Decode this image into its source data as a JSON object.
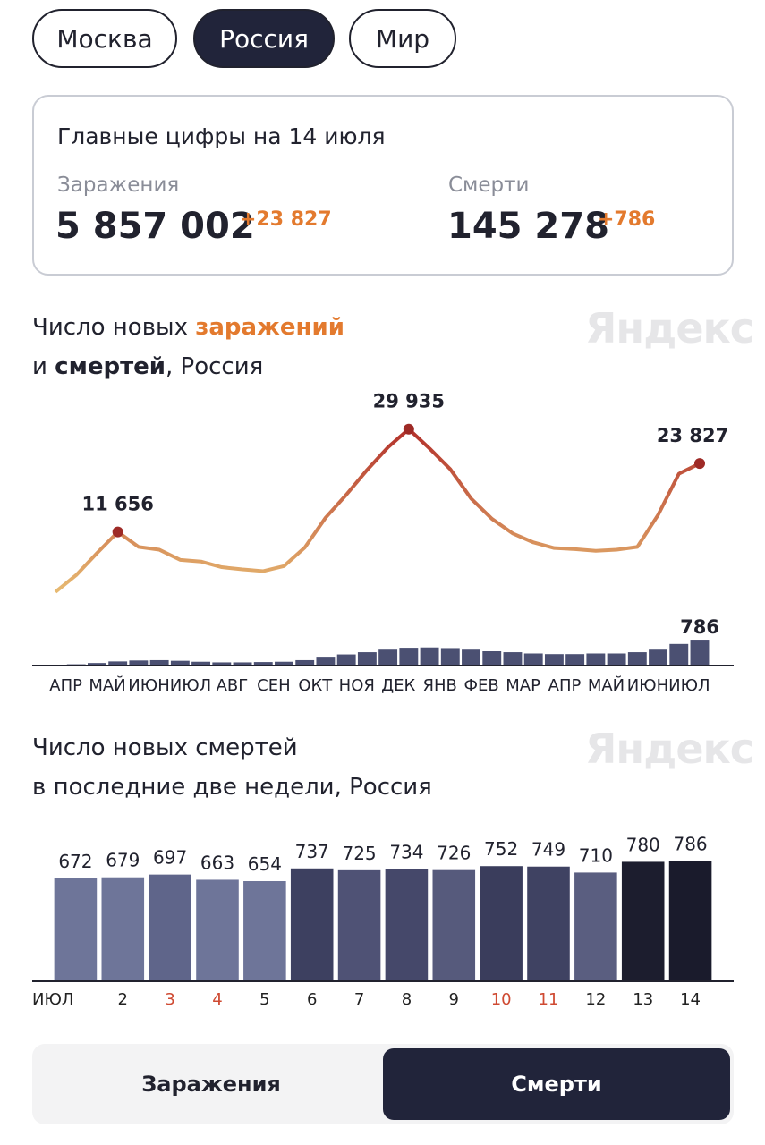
{
  "tabs": [
    "Москва",
    "Россия",
    "Мир"
  ],
  "summary": {
    "title": "Главные цифры на 14 июля",
    "items": [
      {
        "label": "Заражения",
        "value": "5 857 002",
        "delta": "+23 827"
      },
      {
        "label": "Смерти",
        "value": "145 278",
        "delta": "+786"
      }
    ]
  },
  "watermark": "Яндекс",
  "chart_data": [
    {
      "type": "line",
      "title": [
        "Число новых ",
        "заражений",
        "и ",
        "смертей",
        ", Россия"
      ],
      "categories": [
        "АПР",
        null,
        "МАЙ",
        null,
        "ИЮН",
        null,
        "ИЮЛ",
        null,
        "АВГ",
        null,
        "СЕН",
        null,
        "ОКТ",
        null,
        "НОЯ",
        null,
        "ДЕК",
        null,
        "ЯНВ",
        null,
        "ФЕВ",
        null,
        "МАР",
        null,
        "АПР",
        null,
        "МАЙ",
        null,
        "ИЮН",
        null,
        "ИЮЛ",
        null
      ],
      "ylim": [
        0,
        31000
      ],
      "y2lim": [
        0,
        900
      ],
      "color_low": "#e9bf74",
      "color_high": "#b3312b",
      "marker_color": "#9e2a26",
      "series": [
        {
          "values": [
            1000,
            4000,
            7900,
            11656,
            9000,
            8500,
            6700,
            6400,
            5400,
            5000,
            4700,
            5600,
            8900,
            14200,
            18300,
            22700,
            26700,
            29935,
            26500,
            22800,
            17600,
            14000,
            11400,
            9800,
            8800,
            8600,
            8300,
            8500,
            9000,
            14700,
            22000,
            23827
          ],
          "value_labels": [
            null,
            null,
            null,
            "11 656",
            null,
            null,
            null,
            null,
            null,
            null,
            null,
            null,
            null,
            null,
            null,
            null,
            null,
            "29 935",
            null,
            null,
            null,
            null,
            null,
            null,
            null,
            null,
            null,
            null,
            null,
            null,
            null,
            "23 827"
          ]
        },
        {
          "axis": "y2",
          "color": "#4b5072",
          "values": [
            10,
            40,
            80,
            130,
            160,
            170,
            150,
            120,
            100,
            100,
            110,
            120,
            170,
            250,
            350,
            420,
            500,
            560,
            570,
            550,
            500,
            450,
            420,
            380,
            360,
            360,
            380,
            380,
            420,
            500,
            680,
            786
          ],
          "value_labels": [
            null,
            null,
            null,
            null,
            null,
            null,
            null,
            null,
            null,
            null,
            null,
            null,
            null,
            null,
            null,
            null,
            null,
            null,
            null,
            null,
            null,
            null,
            null,
            null,
            null,
            null,
            null,
            null,
            null,
            null,
            null,
            "786"
          ]
        }
      ]
    },
    {
      "type": "bar",
      "title": [
        "Число новых смертей",
        "в последние две недели, Россия"
      ],
      "categories": [
        "ИЮЛ",
        "2",
        "3",
        "4",
        "5",
        "6",
        "7",
        "8",
        "9",
        "10",
        "11",
        "12",
        "13",
        "14"
      ],
      "category_colors": [
        "#222222",
        "#222222",
        "#cf4a32",
        "#cf4a32",
        "#222222",
        "#222222",
        "#222222",
        "#222222",
        "#222222",
        "#cf4a32",
        "#cf4a32",
        "#222222",
        "#222222",
        "#222222"
      ],
      "values": [
        672,
        679,
        697,
        663,
        654,
        737,
        725,
        734,
        726,
        752,
        749,
        710,
        780,
        786
      ],
      "colors": [
        "#6e7599",
        "#6e7599",
        "#5f658a",
        "#6e7599",
        "#6e7599",
        "#3d4060",
        "#4f5275",
        "#45486a",
        "#565a7c",
        "#3a3d5c",
        "#3f4262",
        "#5a5e80",
        "#1c1d2e",
        "#1a1b2c"
      ],
      "ylim": [
        0,
        800
      ]
    }
  ],
  "toggle": {
    "options": [
      "Заражения",
      "Смерти"
    ],
    "selected": 1
  }
}
